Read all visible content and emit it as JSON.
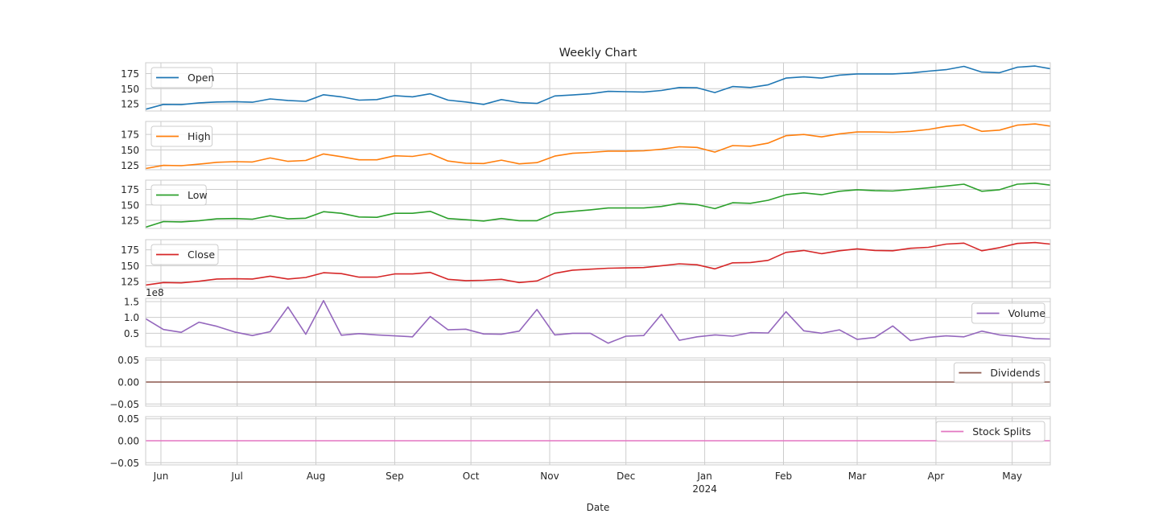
{
  "chart_data": {
    "type": "line",
    "title": "Weekly Chart",
    "xlabel": "Date",
    "x_ticks": [
      {
        "date": "2023-06-01",
        "label": "Jun",
        "sublabel": ""
      },
      {
        "date": "2023-07-01",
        "label": "Jul",
        "sublabel": ""
      },
      {
        "date": "2023-08-01",
        "label": "Aug",
        "sublabel": ""
      },
      {
        "date": "2023-09-01",
        "label": "Sep",
        "sublabel": ""
      },
      {
        "date": "2023-10-01",
        "label": "Oct",
        "sublabel": ""
      },
      {
        "date": "2023-11-01",
        "label": "Nov",
        "sublabel": ""
      },
      {
        "date": "2023-12-01",
        "label": "Dec",
        "sublabel": ""
      },
      {
        "date": "2024-01-01",
        "label": "Jan",
        "sublabel": "2024"
      },
      {
        "date": "2024-02-01",
        "label": "Feb",
        "sublabel": ""
      },
      {
        "date": "2024-03-01",
        "label": "Mar",
        "sublabel": ""
      },
      {
        "date": "2024-04-01",
        "label": "Apr",
        "sublabel": ""
      },
      {
        "date": "2024-05-01",
        "label": "May",
        "sublabel": ""
      }
    ],
    "xlim": [
      "2023-05-26",
      "2024-05-16"
    ],
    "x": [
      "2023-05-26",
      "2023-06-02",
      "2023-06-09",
      "2023-06-16",
      "2023-06-23",
      "2023-06-30",
      "2023-07-07",
      "2023-07-14",
      "2023-07-21",
      "2023-07-28",
      "2023-08-04",
      "2023-08-11",
      "2023-08-18",
      "2023-08-25",
      "2023-09-01",
      "2023-09-08",
      "2023-09-15",
      "2023-09-22",
      "2023-09-29",
      "2023-10-06",
      "2023-10-13",
      "2023-10-20",
      "2023-10-27",
      "2023-11-03",
      "2023-11-10",
      "2023-11-17",
      "2023-11-24",
      "2023-12-01",
      "2023-12-08",
      "2023-12-15",
      "2023-12-22",
      "2023-12-29",
      "2024-01-05",
      "2024-01-12",
      "2024-01-19",
      "2024-01-26",
      "2024-02-02",
      "2024-02-09",
      "2024-02-16",
      "2024-02-23",
      "2024-03-01",
      "2024-03-08",
      "2024-03-15",
      "2024-03-22",
      "2024-03-29",
      "2024-04-05",
      "2024-04-12",
      "2024-04-19",
      "2024-04-26",
      "2024-05-03",
      "2024-05-10",
      "2024-05-16"
    ],
    "legend_placement": "upper left for Open, High, Low, Close; upper right for Volume, Dividends, Stock Splits",
    "grid": true,
    "series": [
      {
        "name": "Open",
        "color": "#1f77b4",
        "legend": "left",
        "ylim": [
          113,
          193
        ],
        "yticks": [
          125,
          150,
          175
        ],
        "ytick_labels": [
          "125",
          "150",
          "175"
        ],
        "offset_label": "",
        "values": [
          116,
          124,
          123.5,
          126.5,
          128,
          128.5,
          127.5,
          133,
          130.5,
          129,
          140,
          136.5,
          131,
          132,
          138.5,
          136.5,
          141.5,
          131,
          128,
          124,
          132,
          127,
          125.5,
          138,
          139.5,
          141.5,
          145.5,
          145,
          144.5,
          147,
          152,
          151.5,
          143.5,
          153.5,
          152,
          156.5,
          167.5,
          169.5,
          167.5,
          172.5,
          174.5,
          174.5,
          174.5,
          176,
          179,
          181.5,
          187,
          177.5,
          176.5,
          185.5,
          187.5,
          183
        ]
      },
      {
        "name": "High",
        "color": "#ff7f0e",
        "legend": "left",
        "ylim": [
          118,
          196
        ],
        "yticks": [
          125,
          150,
          175
        ],
        "ytick_labels": [
          "125",
          "150",
          "175"
        ],
        "offset_label": "",
        "values": [
          120,
          125,
          124.5,
          127,
          130,
          131,
          130.5,
          137,
          131.5,
          133,
          143.5,
          139,
          134,
          134,
          140.5,
          139.5,
          144,
          132,
          128.5,
          128,
          133.5,
          127.5,
          129.5,
          140,
          144.5,
          146,
          148,
          148,
          148.5,
          151,
          155,
          154,
          146.5,
          157,
          156,
          161,
          173,
          175,
          171,
          176,
          179,
          179,
          178.5,
          180,
          183,
          188,
          190.5,
          180,
          182,
          190,
          192,
          188.5
        ]
      },
      {
        "name": "Low",
        "color": "#2ca02c",
        "legend": "left",
        "ylim": [
          112,
          190
        ],
        "yticks": [
          125,
          150,
          175
        ],
        "ytick_labels": [
          "125",
          "150",
          "175"
        ],
        "offset_label": "",
        "values": [
          114,
          123,
          122.5,
          124.5,
          127.5,
          128,
          127,
          132.5,
          127.5,
          128.5,
          139,
          136.5,
          130.5,
          130,
          136.5,
          136.5,
          139.5,
          128,
          126,
          124,
          128,
          124.5,
          124.5,
          137,
          139.5,
          142,
          145,
          145,
          145,
          147.5,
          152.5,
          150.5,
          144,
          153.5,
          152.5,
          157.5,
          166.5,
          169.5,
          166.5,
          172,
          174.5,
          173,
          172.5,
          175,
          177.5,
          180.5,
          183.5,
          172,
          174.5,
          183.5,
          185,
          182
        ]
      },
      {
        "name": "Close",
        "color": "#d62728",
        "legend": "left",
        "ylim": [
          115,
          191
        ],
        "yticks": [
          125,
          150,
          175
        ],
        "ytick_labels": [
          "125",
          "150",
          "175"
        ],
        "offset_label": "",
        "values": [
          119.5,
          123.5,
          123,
          125.5,
          129,
          129.5,
          129,
          133.5,
          129,
          131.5,
          139,
          137.5,
          132,
          132,
          137,
          137,
          139.5,
          128.5,
          126.5,
          127,
          128.5,
          123.5,
          126,
          138,
          143,
          144.5,
          146,
          146.5,
          147,
          150,
          153,
          151.5,
          145,
          154.5,
          155,
          158.5,
          171,
          174,
          169,
          173.5,
          176.5,
          174,
          173.5,
          177.5,
          179,
          184,
          185.5,
          173.5,
          178.5,
          185,
          186.5,
          184
        ]
      },
      {
        "name": "Volume",
        "color": "#9467bd",
        "legend": "right",
        "ylim": [
          0.08,
          1.6
        ],
        "yticks": [
          0.5,
          1.0,
          1.5
        ],
        "ytick_labels": [
          "0.5",
          "1.0",
          "1.5"
        ],
        "offset_label": "1e8",
        "values": [
          0.96,
          0.62,
          0.53,
          0.85,
          0.72,
          0.54,
          0.43,
          0.55,
          1.33,
          0.47,
          1.53,
          0.44,
          0.49,
          0.45,
          0.42,
          0.39,
          1.03,
          0.61,
          0.63,
          0.48,
          0.47,
          0.57,
          1.25,
          0.45,
          0.5,
          0.5,
          0.19,
          0.41,
          0.43,
          1.1,
          0.28,
          0.39,
          0.45,
          0.41,
          0.52,
          0.51,
          1.18,
          0.58,
          0.5,
          0.61,
          0.31,
          0.37,
          0.73,
          0.27,
          0.37,
          0.42,
          0.39,
          0.57,
          0.45,
          0.4,
          0.33,
          0.32
        ]
      },
      {
        "name": "Dividends",
        "color": "#8c564b",
        "legend": "right",
        "ylim": [
          -0.055,
          0.055
        ],
        "yticks": [
          -0.05,
          0.0,
          0.05
        ],
        "ytick_labels": [
          "−0.05",
          "0.00",
          "0.05"
        ],
        "offset_label": "",
        "values": [
          0,
          0,
          0,
          0,
          0,
          0,
          0,
          0,
          0,
          0,
          0,
          0,
          0,
          0,
          0,
          0,
          0,
          0,
          0,
          0,
          0,
          0,
          0,
          0,
          0,
          0,
          0,
          0,
          0,
          0,
          0,
          0,
          0,
          0,
          0,
          0,
          0,
          0,
          0,
          0,
          0,
          0,
          0,
          0,
          0,
          0,
          0,
          0,
          0,
          0,
          0,
          0
        ]
      },
      {
        "name": "Stock Splits",
        "color": "#e377c2",
        "legend": "right",
        "ylim": [
          -0.055,
          0.055
        ],
        "yticks": [
          -0.05,
          0.0,
          0.05
        ],
        "ytick_labels": [
          "−0.05",
          "0.00",
          "0.05"
        ],
        "offset_label": "",
        "values": [
          0,
          0,
          0,
          0,
          0,
          0,
          0,
          0,
          0,
          0,
          0,
          0,
          0,
          0,
          0,
          0,
          0,
          0,
          0,
          0,
          0,
          0,
          0,
          0,
          0,
          0,
          0,
          0,
          0,
          0,
          0,
          0,
          0,
          0,
          0,
          0,
          0,
          0,
          0,
          0,
          0,
          0,
          0,
          0,
          0,
          0,
          0,
          0,
          0,
          0,
          0,
          0
        ]
      }
    ]
  }
}
